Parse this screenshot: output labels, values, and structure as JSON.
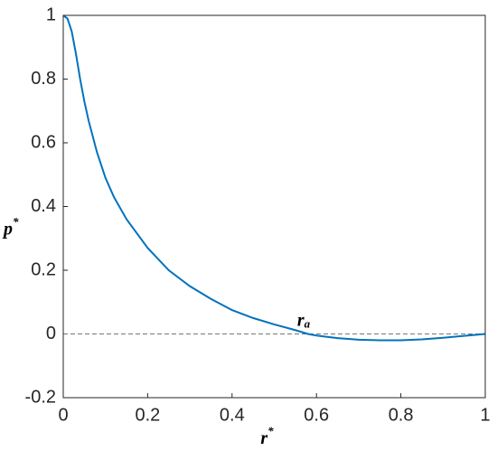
{
  "chart_data": {
    "type": "line",
    "xlabel": {
      "base": "r",
      "sup": "*"
    },
    "ylabel": {
      "base": "p",
      "sup": "*"
    },
    "annotation": {
      "base": "r",
      "sub": "a",
      "x": 0.58,
      "y": 0
    },
    "reference_line": 0,
    "xlim": [
      0,
      1
    ],
    "xticks": [
      0,
      0.2,
      0.4,
      0.6,
      0.8,
      1
    ],
    "ylim": [
      -0.2,
      1
    ],
    "yticks": [
      -0.2,
      0,
      0.2,
      0.4,
      0.6,
      0.8,
      1
    ],
    "series": [
      {
        "color": "#0072bd",
        "x": [
          0,
          0.01,
          0.02,
          0.03,
          0.04,
          0.05,
          0.06,
          0.08,
          0.1,
          0.12,
          0.15,
          0.2,
          0.25,
          0.3,
          0.35,
          0.4,
          0.45,
          0.5,
          0.55,
          0.58,
          0.6,
          0.65,
          0.7,
          0.75,
          0.8,
          0.85,
          0.9,
          0.95,
          1
        ],
        "values": [
          1,
          0.99,
          0.95,
          0.88,
          0.8,
          0.73,
          0.67,
          0.57,
          0.49,
          0.43,
          0.36,
          0.27,
          0.2,
          0.15,
          0.11,
          0.075,
          0.05,
          0.03,
          0.012,
          0,
          -0.005,
          -0.013,
          -0.018,
          -0.02,
          -0.02,
          -0.017,
          -0.012,
          -0.006,
          0
        ]
      }
    ]
  }
}
